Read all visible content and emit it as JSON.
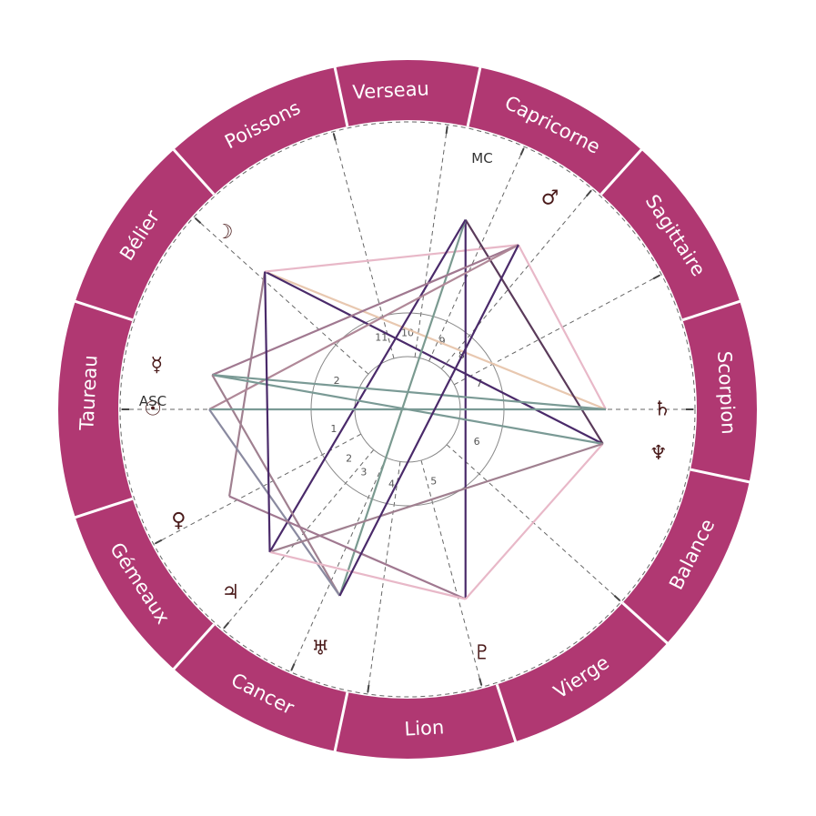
{
  "colors": {
    "ring": "#b03872",
    "ring_divider": "#ffffff",
    "glyph": "#4a1a1a",
    "dashed": "#666666",
    "house_circle": "#888888"
  },
  "zodiac": [
    {
      "name": "Verseau",
      "angle": 93
    },
    {
      "name": "Capricorne",
      "angle": 63
    },
    {
      "name": "Sagittaire",
      "angle": 33
    },
    {
      "name": "Scorpion",
      "angle": 3
    },
    {
      "name": "Balance",
      "angle": -27
    },
    {
      "name": "Vierge",
      "angle": -57
    },
    {
      "name": "Lion",
      "angle": -87
    },
    {
      "name": "Cancer",
      "angle": -117
    },
    {
      "name": "Gémeaux",
      "angle": -147
    },
    {
      "name": "Taureau",
      "angle": 177
    },
    {
      "name": "Bélier",
      "angle": 147
    },
    {
      "name": "Poissons",
      "angle": 117
    }
  ],
  "axes": {
    "asc": "ASC",
    "mc": "MC"
  },
  "planets": [
    {
      "name": "sun",
      "glyph": "☉",
      "angle": 180
    },
    {
      "name": "moon",
      "glyph": "☽",
      "angle": 136
    },
    {
      "name": "mercury",
      "glyph": "☿",
      "angle": 170
    },
    {
      "name": "venus",
      "glyph": "♀",
      "angle": 206
    },
    {
      "name": "mars",
      "glyph": "♂",
      "angle": 56
    },
    {
      "name": "jupiter",
      "glyph": "♃",
      "angle": 226
    },
    {
      "name": "saturn",
      "glyph": "♄",
      "angle": 0
    },
    {
      "name": "uranus",
      "glyph": "♅",
      "angle": 250
    },
    {
      "name": "neptune",
      "glyph": "♆",
      "angle": -10
    },
    {
      "name": "pluto",
      "glyph": "♇",
      "angle": -73
    }
  ],
  "houses": [
    {
      "num": "1",
      "angle": 195
    },
    {
      "num": "2",
      "angle": 220
    },
    {
      "num": "3",
      "angle": 235
    },
    {
      "num": "4",
      "angle": 258
    },
    {
      "num": "5",
      "angle": 290
    },
    {
      "num": "6",
      "angle": 335
    },
    {
      "num": "7",
      "angle": 20
    },
    {
      "num": "8",
      "angle": 45
    },
    {
      "num": "9",
      "angle": 63
    },
    {
      "num": "10",
      "angle": 90
    },
    {
      "num": "11",
      "angle": 110
    },
    {
      "num": "2",
      "angle": 158
    }
  ],
  "aspects": [
    {
      "a": "moon",
      "b": "saturn",
      "color": "#e8c8b0"
    },
    {
      "a": "moon",
      "b": "neptune",
      "color": "#4a2a6a"
    },
    {
      "a": "moon",
      "b": "venus",
      "color": "#a08090"
    },
    {
      "a": "moon",
      "b": "mars",
      "color": "#e8b8c8"
    },
    {
      "a": "mc",
      "b": "neptune",
      "color": "#5a3a5a"
    },
    {
      "a": "mc",
      "b": "pluto",
      "color": "#4a2a6a"
    },
    {
      "a": "mc",
      "b": "uranus",
      "color": "#7a9a90"
    },
    {
      "a": "mc",
      "b": "jupiter",
      "color": "#4a2a6a"
    },
    {
      "a": "mars",
      "b": "saturn",
      "color": "#e8b8c8"
    },
    {
      "a": "mars",
      "b": "mercury",
      "color": "#a07890"
    },
    {
      "a": "mars",
      "b": "sun",
      "color": "#b08898"
    },
    {
      "a": "mercury",
      "b": "saturn",
      "color": "#7a9a95"
    },
    {
      "a": "mercury",
      "b": "neptune",
      "color": "#7a9a95"
    },
    {
      "a": "mercury",
      "b": "uranus",
      "color": "#a08090"
    },
    {
      "a": "sun",
      "b": "saturn",
      "color": "#7a9a95"
    },
    {
      "a": "sun",
      "b": "uranus",
      "color": "#8a8aa0"
    },
    {
      "a": "neptune",
      "b": "pluto",
      "color": "#e8b8c8"
    },
    {
      "a": "neptune",
      "b": "jupiter",
      "color": "#a08090"
    },
    {
      "a": "venus",
      "b": "pluto",
      "color": "#a07890"
    },
    {
      "a": "jupiter",
      "b": "pluto",
      "color": "#e8b8c8"
    },
    {
      "a": "jupiter",
      "b": "moon",
      "color": "#4a2a6a"
    },
    {
      "a": "uranus",
      "b": "mars",
      "color": "#4a2a6a"
    }
  ]
}
